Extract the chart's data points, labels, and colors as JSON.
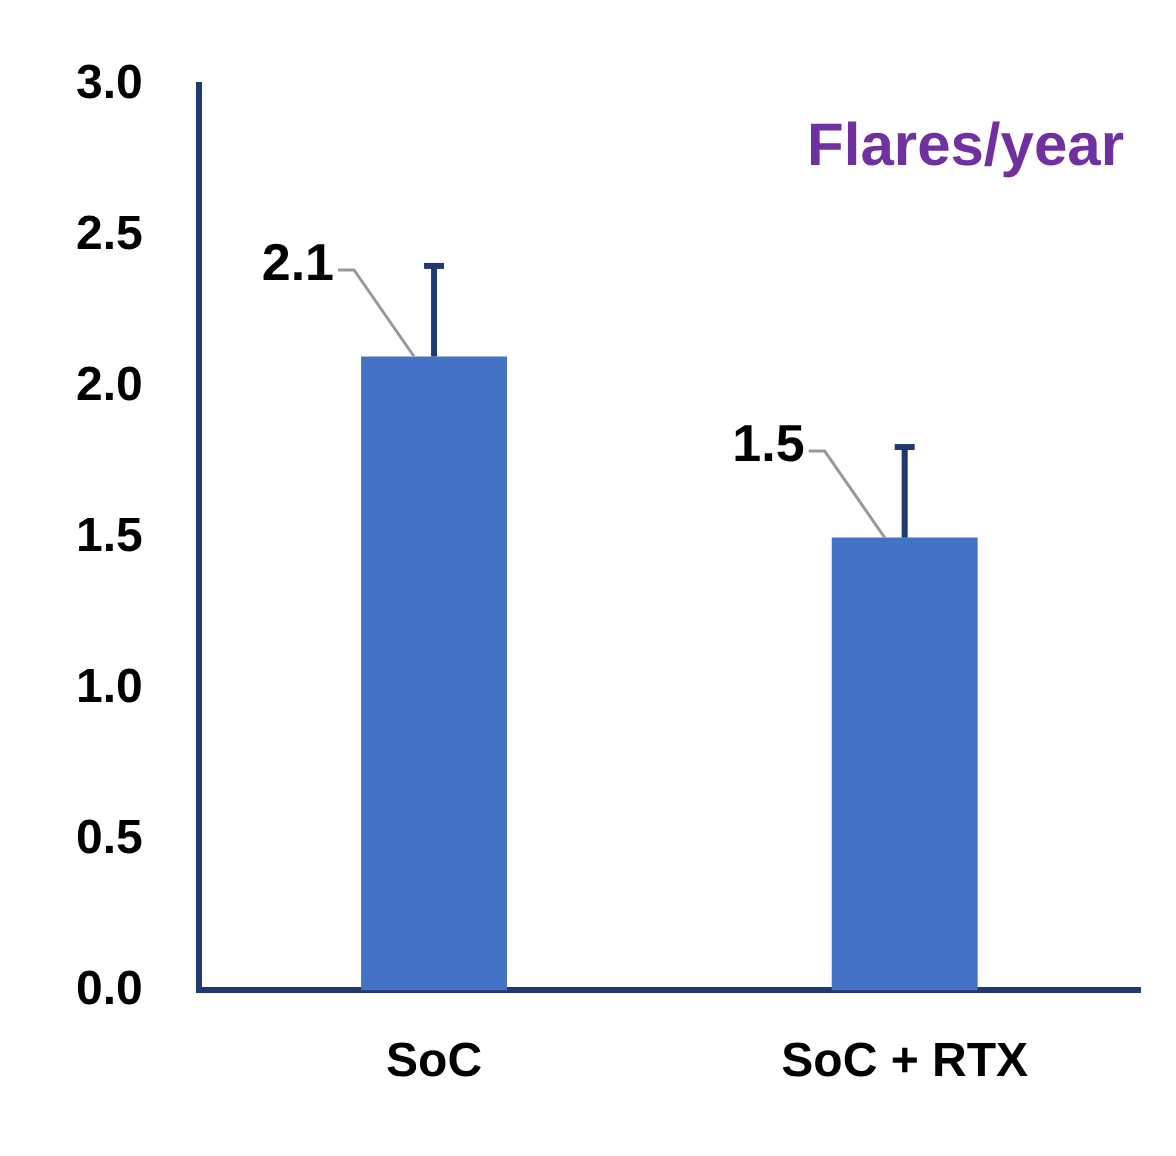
{
  "chart_data": {
    "type": "bar",
    "title": "Flares/year",
    "categories": [
      "SoC",
      "SoC + RTX"
    ],
    "values": [
      2.1,
      1.5
    ],
    "errors": [
      [
        2.1,
        2.4
      ],
      [
        1.5,
        1.8
      ]
    ],
    "color": "#4472c4",
    "ylim": [
      0,
      3
    ],
    "yticks": [
      {
        "value": 0,
        "label": "0.0"
      },
      {
        "value": 0.5,
        "label": "0.5"
      },
      {
        "value": 1,
        "label": "1.0"
      },
      {
        "value": 1.5,
        "label": "1.5"
      },
      {
        "value": 2,
        "label": "2.0"
      },
      {
        "value": 2.5,
        "label": "2.5"
      },
      {
        "value": 3,
        "label": "3.0"
      }
    ],
    "data_labels": true,
    "grid": false,
    "legend": false
  }
}
